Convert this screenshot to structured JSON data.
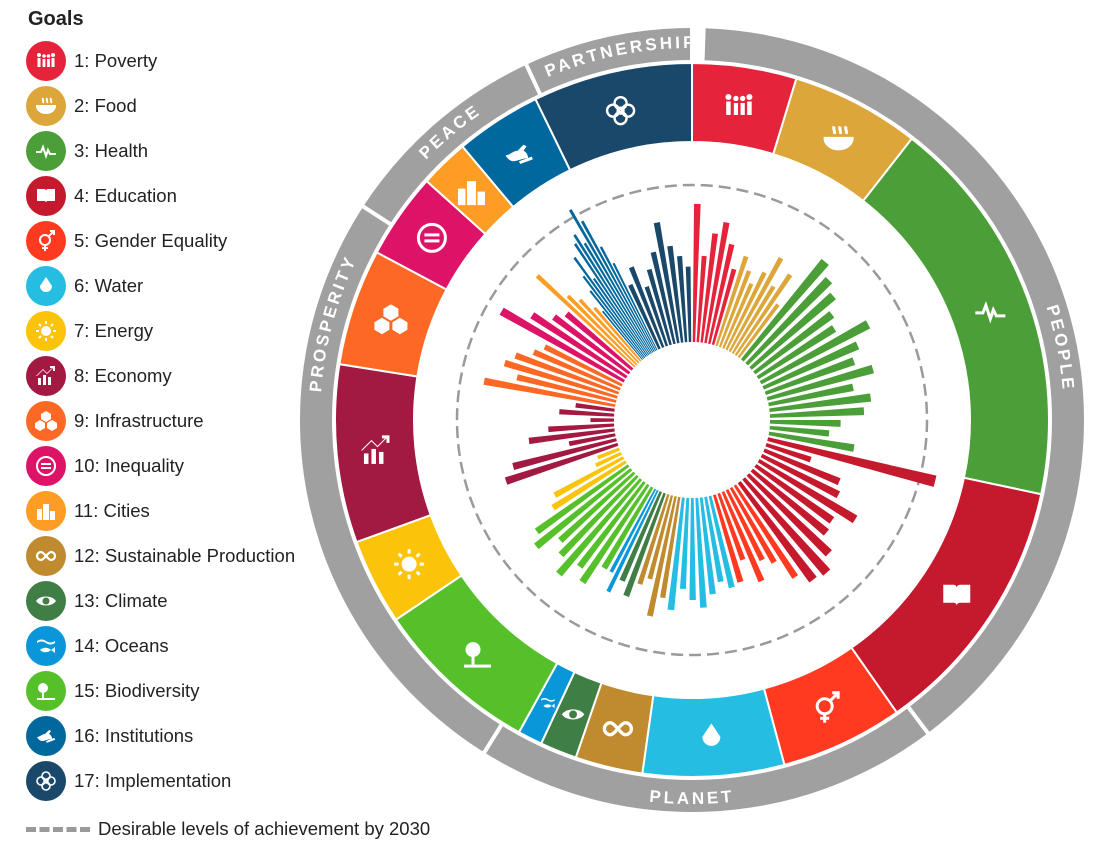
{
  "legend": {
    "title": "Goals",
    "items": [
      {
        "label": "1: Poverty",
        "color": "#E5243B",
        "icon": "family-icon"
      },
      {
        "label": "2: Food",
        "color": "#DDA63A",
        "icon": "bowl-icon"
      },
      {
        "label": "3: Health",
        "color": "#4C9F38",
        "icon": "heartbeat-icon"
      },
      {
        "label": "4: Education",
        "color": "#C5192D",
        "icon": "book-icon"
      },
      {
        "label": "5: Gender Equality",
        "color": "#FF3A21",
        "icon": "gender-icon"
      },
      {
        "label": "6: Water",
        "color": "#26BDE2",
        "icon": "water-drop-icon"
      },
      {
        "label": "7: Energy",
        "color": "#FCC30B",
        "icon": "sun-icon"
      },
      {
        "label": "8: Economy",
        "color": "#A21942",
        "icon": "growth-chart-icon"
      },
      {
        "label": "9: Infrastructure",
        "color": "#FD6925",
        "icon": "cubes-icon"
      },
      {
        "label": "10: Inequality",
        "color": "#DD1367",
        "icon": "equals-icon"
      },
      {
        "label": "11: Cities",
        "color": "#FD9D24",
        "icon": "buildings-icon"
      },
      {
        "label": "12: Sustainable Production",
        "color": "#BF8B2E",
        "icon": "infinity-icon"
      },
      {
        "label": "13: Climate",
        "color": "#3F7E44",
        "icon": "eye-globe-icon"
      },
      {
        "label": "14: Oceans",
        "color": "#0A97D9",
        "icon": "fish-icon"
      },
      {
        "label": "15: Biodiversity",
        "color": "#56C02B",
        "icon": "tree-icon"
      },
      {
        "label": "16: Institutions",
        "color": "#00689D",
        "icon": "dove-icon"
      },
      {
        "label": "17: Implementation",
        "color": "#19486A",
        "icon": "flower-icon"
      }
    ],
    "target_label": "Desirable levels of achievement by 2030"
  },
  "wheel": {
    "pillars": [
      {
        "label": "PEOPLE"
      },
      {
        "label": "PLANET"
      },
      {
        "label": "PROSPERITY"
      },
      {
        "label": "PEACE"
      },
      {
        "label": "PARTNERSHIP"
      }
    ],
    "ring_color": "#a0a0a0",
    "target_line_color": "#9a9a9a"
  },
  "chart_data": {
    "type": "bar",
    "subtype": "radial",
    "title": "",
    "value_scale_note": "bar lengths relative to desirable 2030 level (1.0 = target ring)",
    "goal_order_clockwise_from_top": [
      1,
      2,
      3,
      4,
      5,
      6,
      12,
      13,
      14,
      15,
      7,
      8,
      9,
      10,
      11,
      16,
      17
    ],
    "series": [
      {
        "goal": 1,
        "values": [
          0.88,
          0.55,
          0.7,
          0.78,
          0.65,
          0.5
        ]
      },
      {
        "goal": 2,
        "values": [
          0.6,
          0.52,
          0.45,
          0.55,
          0.68,
          0.5,
          0.62,
          0.42
        ]
      },
      {
        "goal": 3,
        "values": [
          0.82,
          0.75,
          0.7,
          0.62,
          0.58,
          0.78,
          0.66,
          0.6,
          0.7,
          0.55,
          0.65,
          0.6,
          0.45,
          0.38,
          0.55
        ]
      },
      {
        "goal": 4,
        "values": [
          1.1,
          0.3,
          0.52,
          0.55,
          0.72,
          0.6,
          0.62,
          0.72,
          0.8,
          0.78
        ]
      },
      {
        "goal": 5,
        "values": [
          0.7,
          0.55,
          0.5,
          0.62,
          0.45,
          0.58
        ]
      },
      {
        "goal": 6,
        "values": [
          0.6,
          0.55,
          0.62,
          0.7,
          0.65,
          0.58,
          0.72
        ]
      },
      {
        "goal": 12,
        "values": [
          0.65,
          0.78,
          0.55,
          0.6
        ]
      },
      {
        "goal": 13,
        "values": [
          0.7,
          0.62
        ]
      },
      {
        "goal": 14,
        "values": [
          0.72,
          0.6
        ]
      },
      {
        "goal": 15,
        "values": [
          0.6,
          0.75,
          0.68,
          0.8,
          0.7,
          0.64,
          0.78,
          0.72
        ]
      },
      {
        "goal": 7,
        "values": [
          0.55,
          0.5,
          0.18,
          0.15
        ]
      },
      {
        "goal": 8,
        "values": [
          0.75,
          0.68,
          0.3,
          0.55,
          0.42,
          0.15,
          0.35,
          0.25
        ]
      },
      {
        "goal": 9,
        "values": [
          0.85,
          0.65,
          0.75,
          0.7,
          0.6,
          0.55
        ]
      },
      {
        "goal": 10,
        "values": [
          0.9,
          0.72,
          0.6,
          0.55
        ]
      },
      {
        "goal": 11,
        "values": [
          0.85,
          0.62,
          0.55,
          0.45
        ]
      },
      {
        "goal": 16,
        "values": [
          0.4,
          0.55,
          0.65,
          0.78,
          0.6,
          0.85,
          0.9,
          0.82,
          1.05,
          0.95,
          0.75,
          0.62
        ]
      },
      {
        "goal": 17,
        "values": [
          0.45,
          0.55,
          0.4,
          0.5,
          0.6,
          0.78,
          0.62,
          0.55,
          0.48
        ]
      }
    ]
  }
}
